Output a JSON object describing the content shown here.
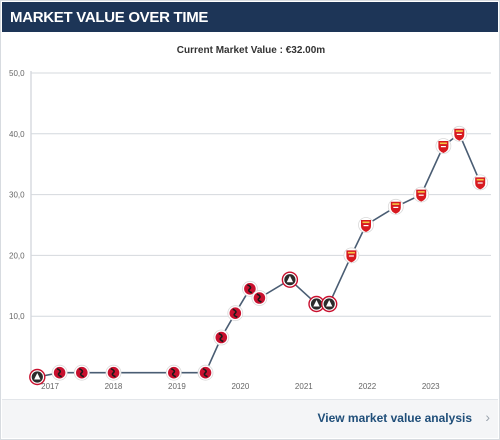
{
  "header": {
    "title": "MARKET VALUE OVER TIME"
  },
  "current_value_label": "Current Market Value : €32.00m",
  "footer": {
    "link_label": "View market value analysis",
    "chevron": "›"
  },
  "colors": {
    "header_bg": "#1d3557",
    "line": "#4a5d73",
    "grid": "#d4d8dd",
    "marker_bournemouth": "#c8102e",
    "marker_sheffield": "#c8102e",
    "marker_arsenal": "#d71920"
  },
  "chart_data": {
    "type": "line",
    "title": "",
    "xlabel": "",
    "ylabel": "",
    "ylim": [
      0,
      50
    ],
    "y_ticks": [
      "50,0",
      "40,0",
      "30,0",
      "20,0",
      "10,0"
    ],
    "y_tick_values": [
      50,
      40,
      30,
      20,
      10
    ],
    "x_ticks": [
      "2017",
      "2018",
      "2019",
      "2020",
      "2021",
      "2022",
      "2023"
    ],
    "x_tick_values": [
      2017,
      2018,
      2019,
      2020,
      2021,
      2022,
      2023
    ],
    "grid": true,
    "series": [
      {
        "values": [
          {
            "x": 2016.8,
            "y": 0.0,
            "club": "sheffield-united"
          },
          {
            "x": 2017.15,
            "y": 0.7,
            "club": "bournemouth"
          },
          {
            "x": 2017.5,
            "y": 0.7,
            "club": "bournemouth"
          },
          {
            "x": 2018.0,
            "y": 0.7,
            "club": "bournemouth"
          },
          {
            "x": 2018.95,
            "y": 0.7,
            "club": "bournemouth"
          },
          {
            "x": 2019.45,
            "y": 0.7,
            "club": "bournemouth"
          },
          {
            "x": 2019.7,
            "y": 6.5,
            "club": "bournemouth"
          },
          {
            "x": 2019.92,
            "y": 10.5,
            "club": "bournemouth"
          },
          {
            "x": 2020.15,
            "y": 14.5,
            "club": "bournemouth"
          },
          {
            "x": 2020.3,
            "y": 13.0,
            "club": "bournemouth"
          },
          {
            "x": 2020.78,
            "y": 16.0,
            "club": "sheffield-united"
          },
          {
            "x": 2021.2,
            "y": 12.0,
            "club": "sheffield-united"
          },
          {
            "x": 2021.4,
            "y": 12.0,
            "club": "sheffield-united"
          },
          {
            "x": 2021.75,
            "y": 20.0,
            "club": "arsenal"
          },
          {
            "x": 2021.98,
            "y": 25.0,
            "club": "arsenal"
          },
          {
            "x": 2022.45,
            "y": 28.0,
            "club": "arsenal"
          },
          {
            "x": 2022.85,
            "y": 30.0,
            "club": "arsenal"
          },
          {
            "x": 2023.2,
            "y": 38.0,
            "club": "arsenal"
          },
          {
            "x": 2023.45,
            "y": 40.0,
            "club": "arsenal"
          },
          {
            "x": 2023.78,
            "y": 32.0,
            "club": "arsenal"
          }
        ]
      }
    ]
  }
}
